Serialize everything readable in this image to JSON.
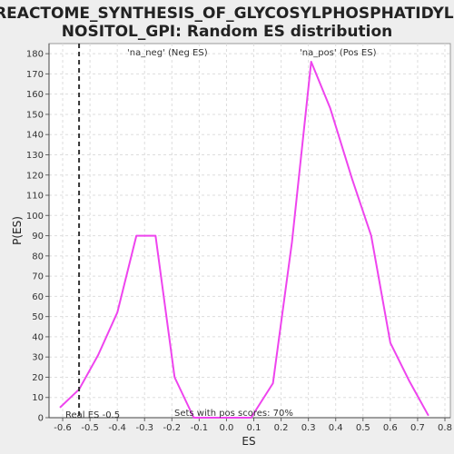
{
  "chart_data": {
    "type": "line",
    "title_line1": "REACTOME_SYNTHESIS_OF_GLYCOSYLPHOSPHATIDYLI",
    "title_line2": "NOSITOL_GPI: Random ES distribution",
    "xlabel": "ES",
    "ylabel": "P(ES)",
    "xlim": [
      -0.65,
      0.82
    ],
    "ylim": [
      0,
      185
    ],
    "x_ticks": [
      -0.6,
      -0.5,
      -0.4,
      -0.3,
      -0.2,
      -0.1,
      0.0,
      0.1,
      0.2,
      0.3,
      0.4,
      0.5,
      0.6,
      0.7,
      0.8
    ],
    "x_tick_labels": [
      "-0.6",
      "-0.5",
      "-0.4",
      "-0.3",
      "-0.2",
      "-0.1",
      "0.0",
      "0.1",
      "0.2",
      "0.3",
      "0.4",
      "0.5",
      "0.6",
      "0.7",
      "0.8"
    ],
    "y_ticks": [
      0,
      10,
      20,
      30,
      40,
      50,
      60,
      70,
      80,
      90,
      100,
      110,
      120,
      130,
      140,
      150,
      160,
      170,
      180
    ],
    "grid": true,
    "series": [
      {
        "color": "#ee44ee",
        "x": [
          -0.61,
          -0.54,
          -0.47,
          -0.4,
          -0.33,
          -0.26,
          -0.19,
          -0.12,
          -0.05,
          0.02,
          0.09,
          0.17,
          0.24,
          0.31,
          0.38,
          0.46,
          0.53,
          0.6,
          0.67,
          0.74
        ],
        "y": [
          5,
          14,
          31,
          52,
          90,
          90,
          20,
          0,
          0,
          0,
          0,
          17,
          87,
          176,
          153,
          118,
          90,
          37,
          18,
          1
        ]
      }
    ],
    "real_es": -0.54,
    "annotations": {
      "neg_label": "'na_neg' (Neg ES)",
      "pos_label": "'na_pos' (Pos ES)",
      "neg_color": "#3333cc",
      "pos_color": "#cc3333",
      "real_es_text": "Real ES -0.5",
      "pos_scores_text": "Sets with pos scores: 70%"
    }
  }
}
